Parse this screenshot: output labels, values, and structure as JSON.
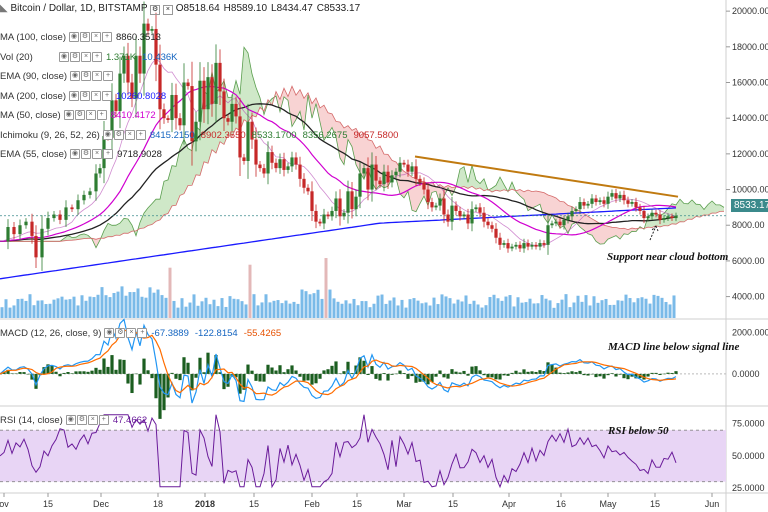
{
  "header": {
    "symbol": "Bitcoin / Dollar, 1D, BITSTAMP",
    "ohlc": [
      {
        "k": "O",
        "v": "8518.64"
      },
      {
        "k": "H",
        "v": "8589.10"
      },
      {
        "k": "L",
        "v": "8434.47"
      },
      {
        "k": "C",
        "v": "8533.17"
      }
    ]
  },
  "indicators": [
    {
      "label": "MA (100, close)",
      "values": [
        {
          "text": "8860.3513",
          "color": "#222222"
        }
      ]
    },
    {
      "label": "Vol (20)",
      "values": [
        {
          "text": "1.371K",
          "color": "#2e7d32"
        },
        {
          "text": "10.436K",
          "color": "#1565c0"
        }
      ]
    },
    {
      "label": "EMA (90, close)",
      "values": []
    },
    {
      "label": "MA (200, close)",
      "values": [
        {
          "text": "10260.8028",
          "color": "#1a1aff"
        }
      ]
    },
    {
      "label": "MA (50, close)",
      "values": [
        {
          "text": "8410.4172",
          "color": "#d000d0"
        }
      ]
    },
    {
      "label": "Ichimoku (9, 26, 52, 26)",
      "values": [
        {
          "text": "8415.2150",
          "color": "#1565c0"
        },
        {
          "text": "8902.3550",
          "color": "#c62828"
        },
        {
          "text": "8533.1700",
          "color": "#2e7d32"
        },
        {
          "text": "8356.2675",
          "color": "#2e7d32"
        },
        {
          "text": "9057.5800",
          "color": "#c62828"
        }
      ]
    },
    {
      "label": "EMA (55, close)",
      "values": [
        {
          "text": "9718.9028",
          "color": "#222222"
        }
      ]
    }
  ],
  "macd_legend": {
    "label": "MACD (12, 26, close, 9)",
    "values": [
      {
        "text": "-67.3889",
        "color": "#1565c0"
      },
      {
        "text": "-122.8154",
        "color": "#1565c0"
      },
      {
        "text": "-55.4265",
        "color": "#e65100"
      }
    ]
  },
  "rsi_legend": {
    "label": "RSI (14, close)",
    "values": [
      {
        "text": "47.4662",
        "color": "#6a1b9a"
      }
    ]
  },
  "annotations": {
    "support": "Support near cloud bottom",
    "macd": "MACD line below signal line",
    "rsi": "RSI below 50"
  },
  "last_price": "8533.17",
  "colors": {
    "up": "#2e7d32",
    "down": "#c62828",
    "ma200": "#1a1aff",
    "ema55": "#222222",
    "ma50": "#d000d0",
    "trendline": "#c07a10",
    "volume": "#4da3e0",
    "macd_line": "#2196f3",
    "macd_signal": "#ff6d00",
    "macd_hist": "#1b5e20",
    "rsi_line": "#6a1b9a",
    "rsi_band": "#e8d5f5"
  },
  "chart_data": {
    "type": "candlestick",
    "title": "Bitcoin / Dollar, 1D, BITSTAMP",
    "x_ticks": [
      "ov",
      "15",
      "Dec",
      "18",
      "2018",
      "15",
      "Feb",
      "15",
      "Mar",
      "15",
      "Apr",
      "16",
      "May",
      "15",
      "Jun"
    ],
    "price_ticks": [
      "20000.00",
      "18000.00",
      "16000.00",
      "14000.00",
      "12000.00",
      "10000.00",
      "8000.00",
      "6000.00",
      "4000.00"
    ],
    "price_range": [
      2800,
      20400
    ],
    "macd_ticks": [
      "2000.0000",
      "0.0000"
    ],
    "macd_range": [
      -1500,
      2600
    ],
    "rsi_ticks": [
      "75.0000",
      "50.0000",
      "25.0000"
    ],
    "rsi_range": [
      22,
      88
    ],
    "rsi_band": [
      30,
      70
    ],
    "price_points": [
      [
        0,
        7100
      ],
      [
        8,
        7900
      ],
      [
        14,
        7500
      ],
      [
        20,
        8000
      ],
      [
        26,
        8200
      ],
      [
        32,
        7400
      ],
      [
        36,
        6200
      ],
      [
        42,
        7800
      ],
      [
        48,
        8400
      ],
      [
        54,
        8600
      ],
      [
        60,
        8300
      ],
      [
        66,
        9000
      ],
      [
        72,
        8900
      ],
      [
        78,
        9400
      ],
      [
        84,
        9700
      ],
      [
        90,
        9900
      ],
      [
        96,
        10900
      ],
      [
        100,
        11200
      ],
      [
        104,
        13000
      ],
      [
        108,
        12900
      ],
      [
        112,
        15000
      ],
      [
        116,
        14400
      ],
      [
        120,
        16500
      ],
      [
        124,
        17500
      ],
      [
        128,
        16000
      ],
      [
        132,
        15100
      ],
      [
        136,
        17500
      ],
      [
        140,
        16500
      ],
      [
        144,
        19300
      ],
      [
        148,
        18900
      ],
      [
        152,
        19000
      ],
      [
        156,
        17000
      ],
      [
        160,
        14500
      ],
      [
        164,
        14000
      ],
      [
        168,
        13900
      ],
      [
        172,
        15300
      ],
      [
        176,
        14000
      ],
      [
        180,
        13600
      ],
      [
        184,
        16000
      ],
      [
        188,
        15800
      ],
      [
        192,
        12700
      ],
      [
        196,
        13800
      ],
      [
        200,
        16100
      ],
      [
        204,
        14500
      ],
      [
        208,
        16300
      ],
      [
        212,
        14800
      ],
      [
        216,
        17100
      ],
      [
        220,
        15500
      ],
      [
        224,
        14000
      ],
      [
        228,
        13800
      ],
      [
        232,
        14800
      ],
      [
        236,
        14100
      ],
      [
        240,
        11800
      ],
      [
        244,
        11600
      ],
      [
        248,
        13800
      ],
      [
        252,
        12800
      ],
      [
        256,
        11400
      ],
      [
        260,
        11200
      ],
      [
        264,
        10900
      ],
      [
        268,
        12100
      ],
      [
        272,
        11500
      ],
      [
        276,
        11200
      ],
      [
        280,
        11700
      ],
      [
        284,
        11100
      ],
      [
        288,
        11300
      ],
      [
        292,
        11800
      ],
      [
        296,
        11400
      ],
      [
        300,
        10600
      ],
      [
        304,
        10100
      ],
      [
        308,
        9900
      ],
      [
        312,
        8800
      ],
      [
        316,
        8200
      ],
      [
        320,
        8100
      ],
      [
        324,
        8600
      ],
      [
        328,
        8500
      ],
      [
        332,
        8800
      ],
      [
        336,
        9500
      ],
      [
        340,
        8500
      ],
      [
        344,
        8700
      ],
      [
        348,
        9900
      ],
      [
        352,
        8900
      ],
      [
        356,
        9600
      ],
      [
        360,
        10900
      ],
      [
        364,
        11200
      ],
      [
        368,
        10000
      ],
      [
        372,
        11400
      ],
      [
        376,
        10500
      ],
      [
        380,
        10300
      ],
      [
        384,
        11000
      ],
      [
        388,
        10400
      ],
      [
        392,
        10800
      ],
      [
        396,
        11000
      ],
      [
        400,
        11500
      ],
      [
        404,
        11400
      ],
      [
        408,
        11000
      ],
      [
        412,
        11300
      ],
      [
        416,
        10600
      ],
      [
        420,
        10400
      ],
      [
        424,
        10000
      ],
      [
        428,
        9300
      ],
      [
        432,
        9000
      ],
      [
        436,
        9100
      ],
      [
        440,
        9500
      ],
      [
        444,
        8600
      ],
      [
        448,
        8200
      ],
      [
        452,
        9100
      ],
      [
        456,
        8800
      ],
      [
        460,
        8500
      ],
      [
        464,
        8600
      ],
      [
        468,
        8100
      ],
      [
        472,
        8900
      ],
      [
        476,
        9000
      ],
      [
        480,
        8700
      ],
      [
        484,
        8200
      ],
      [
        488,
        8000
      ],
      [
        492,
        7800
      ],
      [
        496,
        7300
      ],
      [
        500,
        6900
      ],
      [
        504,
        7000
      ],
      [
        508,
        6700
      ],
      [
        512,
        6800
      ],
      [
        516,
        6900
      ],
      [
        520,
        6700
      ],
      [
        524,
        7000
      ],
      [
        528,
        6800
      ],
      [
        532,
        6900
      ],
      [
        536,
        6800
      ],
      [
        540,
        7000
      ],
      [
        544,
        6900
      ],
      [
        548,
        8000
      ],
      [
        552,
        8100
      ],
      [
        556,
        8200
      ],
      [
        560,
        8000
      ],
      [
        564,
        8300
      ],
      [
        568,
        8500
      ],
      [
        572,
        8800
      ],
      [
        576,
        8900
      ],
      [
        580,
        9300
      ],
      [
        584,
        9100
      ],
      [
        588,
        9200
      ],
      [
        592,
        9500
      ],
      [
        596,
        9300
      ],
      [
        600,
        9400
      ],
      [
        604,
        9200
      ],
      [
        608,
        9600
      ],
      [
        612,
        9800
      ],
      [
        616,
        9500
      ],
      [
        620,
        9700
      ],
      [
        624,
        9400
      ],
      [
        628,
        9200
      ],
      [
        632,
        9300
      ],
      [
        636,
        9000
      ],
      [
        640,
        8800
      ],
      [
        644,
        8400
      ],
      [
        648,
        8500
      ],
      [
        652,
        8700
      ],
      [
        656,
        8600
      ],
      [
        660,
        8300
      ],
      [
        664,
        8400
      ],
      [
        668,
        8500
      ],
      [
        672,
        8400
      ],
      [
        676,
        8533
      ]
    ]
  }
}
